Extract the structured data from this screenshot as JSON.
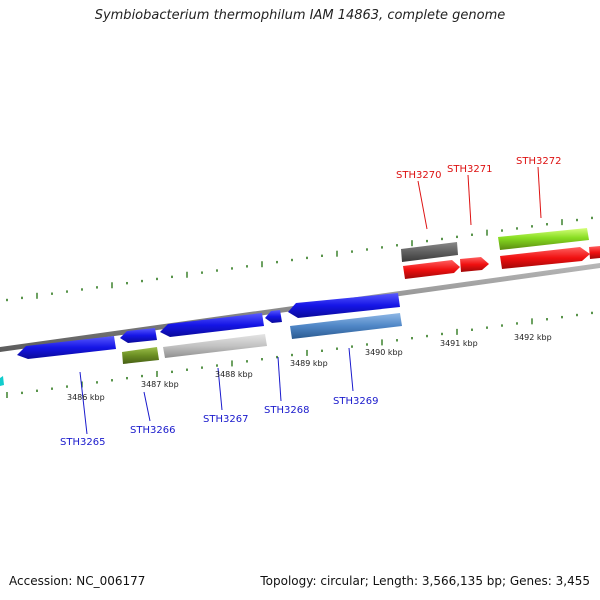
{
  "title": "Symbiobacterium thermophilum IAM 14863, complete genome",
  "footer": {
    "accession": "Accession: NC_006177",
    "summary": "Topology: circular; Length: 3,566,135 bp; Genes: 3,455"
  },
  "scale_labels": [
    "3486 kbp",
    "3487 kbp",
    "3488 kbp",
    "3489 kbp",
    "3490 kbp",
    "3491 kbp",
    "3492 kbp"
  ],
  "gene_labels": {
    "bottom": [
      "STH3265",
      "STH3266",
      "STH3267",
      "STH3268",
      "STH3269"
    ],
    "top": [
      "STH3270",
      "STH3271",
      "STH3272"
    ]
  },
  "colors": {
    "backbone": "#8c8c8c",
    "tick": "#2f7a1e",
    "label_blue": "#1a1acc",
    "label_red": "#dd1111",
    "gene_blue": "#1515e6",
    "gene_red": "#f01010",
    "gene_olive": "#6b8e23",
    "gene_grey": "#bdbdbd",
    "gene_steel": "#4f86c6",
    "gene_dark_grey": "#5f5f5f",
    "gene_lime": "#88dd22",
    "gene_cyan": "#11cccc"
  }
}
